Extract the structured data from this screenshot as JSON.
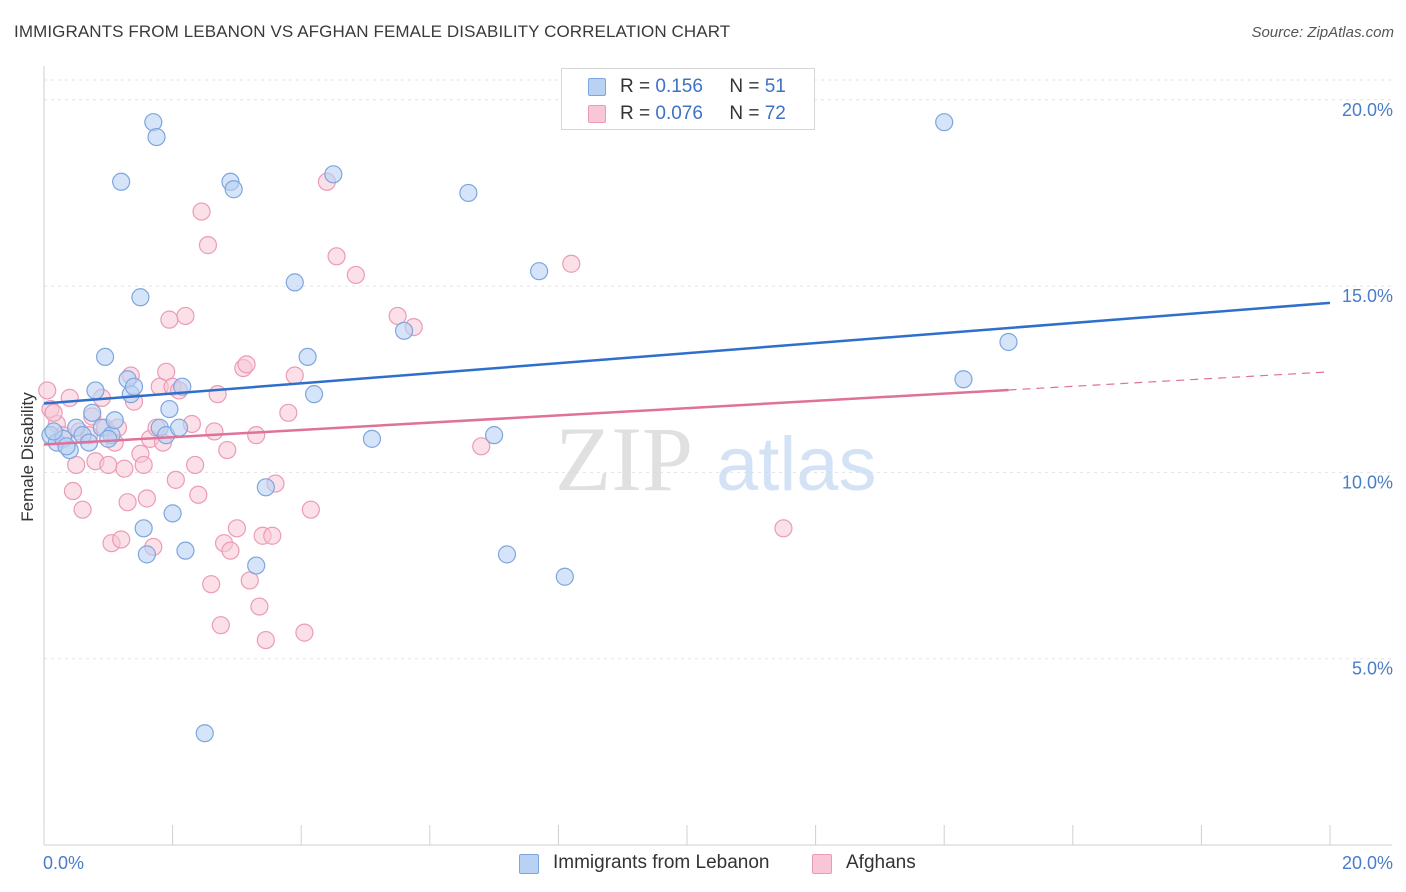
{
  "chart_data": {
    "type": "scatter",
    "title": "IMMIGRANTS FROM LEBANON VS AFGHAN FEMALE DISABILITY CORRELATION CHART",
    "source": "Source: ZipAtlas.com",
    "ylabel": "Female Disability",
    "xlim": [
      0,
      20
    ],
    "ylim": [
      0,
      20.8
    ],
    "x_tick_labels": [
      "0.0%",
      "20.0%"
    ],
    "y_ticks": [
      5,
      10,
      15,
      20
    ],
    "y_tick_labels": [
      "5.0%",
      "10.0%",
      "15.0%",
      "20.0%"
    ],
    "grid": "horizontal dashed",
    "watermark": {
      "zip": "ZIP",
      "atlas": "atlas"
    },
    "colors": {
      "blue_fill": "#b9d2f3",
      "blue_stroke": "#7ea6de",
      "blue_line": "#2f6fcb",
      "pink_fill": "#f8c6d6",
      "pink_stroke": "#eb9bb6",
      "pink_line": "#e0719a"
    },
    "legend_stats": [
      {
        "r_label": "R =",
        "r": "0.156",
        "n_label": "N =",
        "n": "51"
      },
      {
        "r_label": "R =",
        "r": "0.076",
        "n_label": "N =",
        "n": "72"
      }
    ],
    "series": [
      {
        "name": "Immigrants from Lebanon",
        "color": "#b9d2f3",
        "trend": {
          "x": [
            0,
            20
          ],
          "y": [
            11.85,
            14.55
          ],
          "solid_until": 20
        },
        "points": [
          [
            0.1,
            11.0
          ],
          [
            0.2,
            10.8
          ],
          [
            0.3,
            10.9
          ],
          [
            0.4,
            10.6
          ],
          [
            0.5,
            11.2
          ],
          [
            0.6,
            11.0
          ],
          [
            0.7,
            10.8
          ],
          [
            0.75,
            11.6
          ],
          [
            0.8,
            12.2
          ],
          [
            0.9,
            11.2
          ],
          [
            0.95,
            13.1
          ],
          [
            1.05,
            11.0
          ],
          [
            1.1,
            11.4
          ],
          [
            1.2,
            17.8
          ],
          [
            1.3,
            12.5
          ],
          [
            1.35,
            12.1
          ],
          [
            1.4,
            12.3
          ],
          [
            1.5,
            14.7
          ],
          [
            1.55,
            8.5
          ],
          [
            1.6,
            7.8
          ],
          [
            1.7,
            19.4
          ],
          [
            1.75,
            19.0
          ],
          [
            1.8,
            11.2
          ],
          [
            1.9,
            11.0
          ],
          [
            1.95,
            11.7
          ],
          [
            2.0,
            8.9
          ],
          [
            2.1,
            11.2
          ],
          [
            2.15,
            12.3
          ],
          [
            2.2,
            7.9
          ],
          [
            2.5,
            3.0
          ],
          [
            2.9,
            17.8
          ],
          [
            2.95,
            17.6
          ],
          [
            3.3,
            7.5
          ],
          [
            3.45,
            9.6
          ],
          [
            3.9,
            15.1
          ],
          [
            4.1,
            13.1
          ],
          [
            4.2,
            12.1
          ],
          [
            4.5,
            18.0
          ],
          [
            5.1,
            10.9
          ],
          [
            5.6,
            13.8
          ],
          [
            6.6,
            17.5
          ],
          [
            7.0,
            11.0
          ],
          [
            7.2,
            7.8
          ],
          [
            7.7,
            15.4
          ],
          [
            8.1,
            7.2
          ],
          [
            14.0,
            19.4
          ],
          [
            14.3,
            12.5
          ],
          [
            15.0,
            13.5
          ],
          [
            0.15,
            11.1
          ],
          [
            0.35,
            10.7
          ],
          [
            1.0,
            10.9
          ]
        ]
      },
      {
        "name": "Afghans",
        "color": "#f8c6d6",
        "trend": {
          "x": [
            0,
            20
          ],
          "y": [
            10.75,
            12.7
          ],
          "solid_until": 15
        },
        "points": [
          [
            0.05,
            12.2
          ],
          [
            0.1,
            11.7
          ],
          [
            0.2,
            11.3
          ],
          [
            0.3,
            11.0
          ],
          [
            0.4,
            12.0
          ],
          [
            0.5,
            10.2
          ],
          [
            0.55,
            11.1
          ],
          [
            0.6,
            9.0
          ],
          [
            0.7,
            11.0
          ],
          [
            0.75,
            11.5
          ],
          [
            0.8,
            10.3
          ],
          [
            0.9,
            12.0
          ],
          [
            0.95,
            11.2
          ],
          [
            1.0,
            10.2
          ],
          [
            1.05,
            8.1
          ],
          [
            1.1,
            10.8
          ],
          [
            1.15,
            11.2
          ],
          [
            1.2,
            8.2
          ],
          [
            1.3,
            9.2
          ],
          [
            1.35,
            12.6
          ],
          [
            1.4,
            11.9
          ],
          [
            1.5,
            10.5
          ],
          [
            1.55,
            10.2
          ],
          [
            1.6,
            9.3
          ],
          [
            1.65,
            10.9
          ],
          [
            1.7,
            8.0
          ],
          [
            1.75,
            11.2
          ],
          [
            1.8,
            12.3
          ],
          [
            1.85,
            10.8
          ],
          [
            1.9,
            12.7
          ],
          [
            1.95,
            14.1
          ],
          [
            2.0,
            12.3
          ],
          [
            2.05,
            9.8
          ],
          [
            2.1,
            12.2
          ],
          [
            2.2,
            14.2
          ],
          [
            2.3,
            11.3
          ],
          [
            2.35,
            10.2
          ],
          [
            2.4,
            9.4
          ],
          [
            2.45,
            17.0
          ],
          [
            2.55,
            16.1
          ],
          [
            2.6,
            7.0
          ],
          [
            2.7,
            12.1
          ],
          [
            2.75,
            5.9
          ],
          [
            2.8,
            8.1
          ],
          [
            2.85,
            10.6
          ],
          [
            2.9,
            7.9
          ],
          [
            3.0,
            8.5
          ],
          [
            3.1,
            12.8
          ],
          [
            3.15,
            12.9
          ],
          [
            3.2,
            7.1
          ],
          [
            3.3,
            11.0
          ],
          [
            3.35,
            6.4
          ],
          [
            3.4,
            8.3
          ],
          [
            3.45,
            5.5
          ],
          [
            3.55,
            8.3
          ],
          [
            3.6,
            9.7
          ],
          [
            3.8,
            11.6
          ],
          [
            3.9,
            12.6
          ],
          [
            4.05,
            5.7
          ],
          [
            4.15,
            9.0
          ],
          [
            4.4,
            17.8
          ],
          [
            4.55,
            15.8
          ],
          [
            4.85,
            15.3
          ],
          [
            5.5,
            14.2
          ],
          [
            5.75,
            13.9
          ],
          [
            6.8,
            10.7
          ],
          [
            8.2,
            15.6
          ],
          [
            11.5,
            8.5
          ],
          [
            0.15,
            11.6
          ],
          [
            2.65,
            11.1
          ],
          [
            1.25,
            10.1
          ],
          [
            0.45,
            9.5
          ]
        ]
      }
    ]
  }
}
